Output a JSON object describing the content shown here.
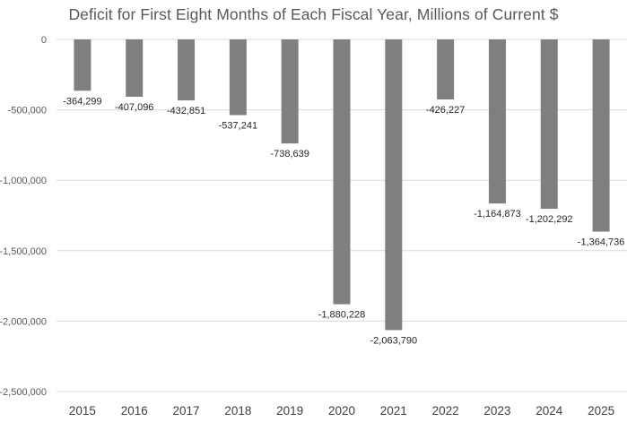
{
  "chart_data": {
    "type": "bar",
    "title": "Deficit for First Eight Months of Each Fiscal Year, Millions of Current $",
    "categories": [
      "2015",
      "2016",
      "2017",
      "2018",
      "2019",
      "2020",
      "2021",
      "2022",
      "2023",
      "2024",
      "2025"
    ],
    "values": [
      -364299,
      -407096,
      -432851,
      -537241,
      -738639,
      -1880228,
      -2063790,
      -426227,
      -1164873,
      -1202292,
      -1364736
    ],
    "data_labels": [
      "-364,299",
      "-407,096",
      "-432,851",
      "-537,241",
      "-738,639",
      "-1,880,228",
      "-2,063,790",
      "-426,227",
      "-1,164,873",
      "-1,202,292",
      "-1,364,736"
    ],
    "ylim": [
      -2500000,
      0
    ],
    "yticks": [
      0,
      -500000,
      -1000000,
      -1500000,
      -2000000,
      -2500000
    ],
    "ytick_labels": [
      "0",
      "-500,000",
      "-1,000,000",
      "-1,500,000",
      "-2,000,000",
      "-2,500,000"
    ],
    "grid": true,
    "legend": false,
    "bar_color": "#7f7f7f"
  }
}
